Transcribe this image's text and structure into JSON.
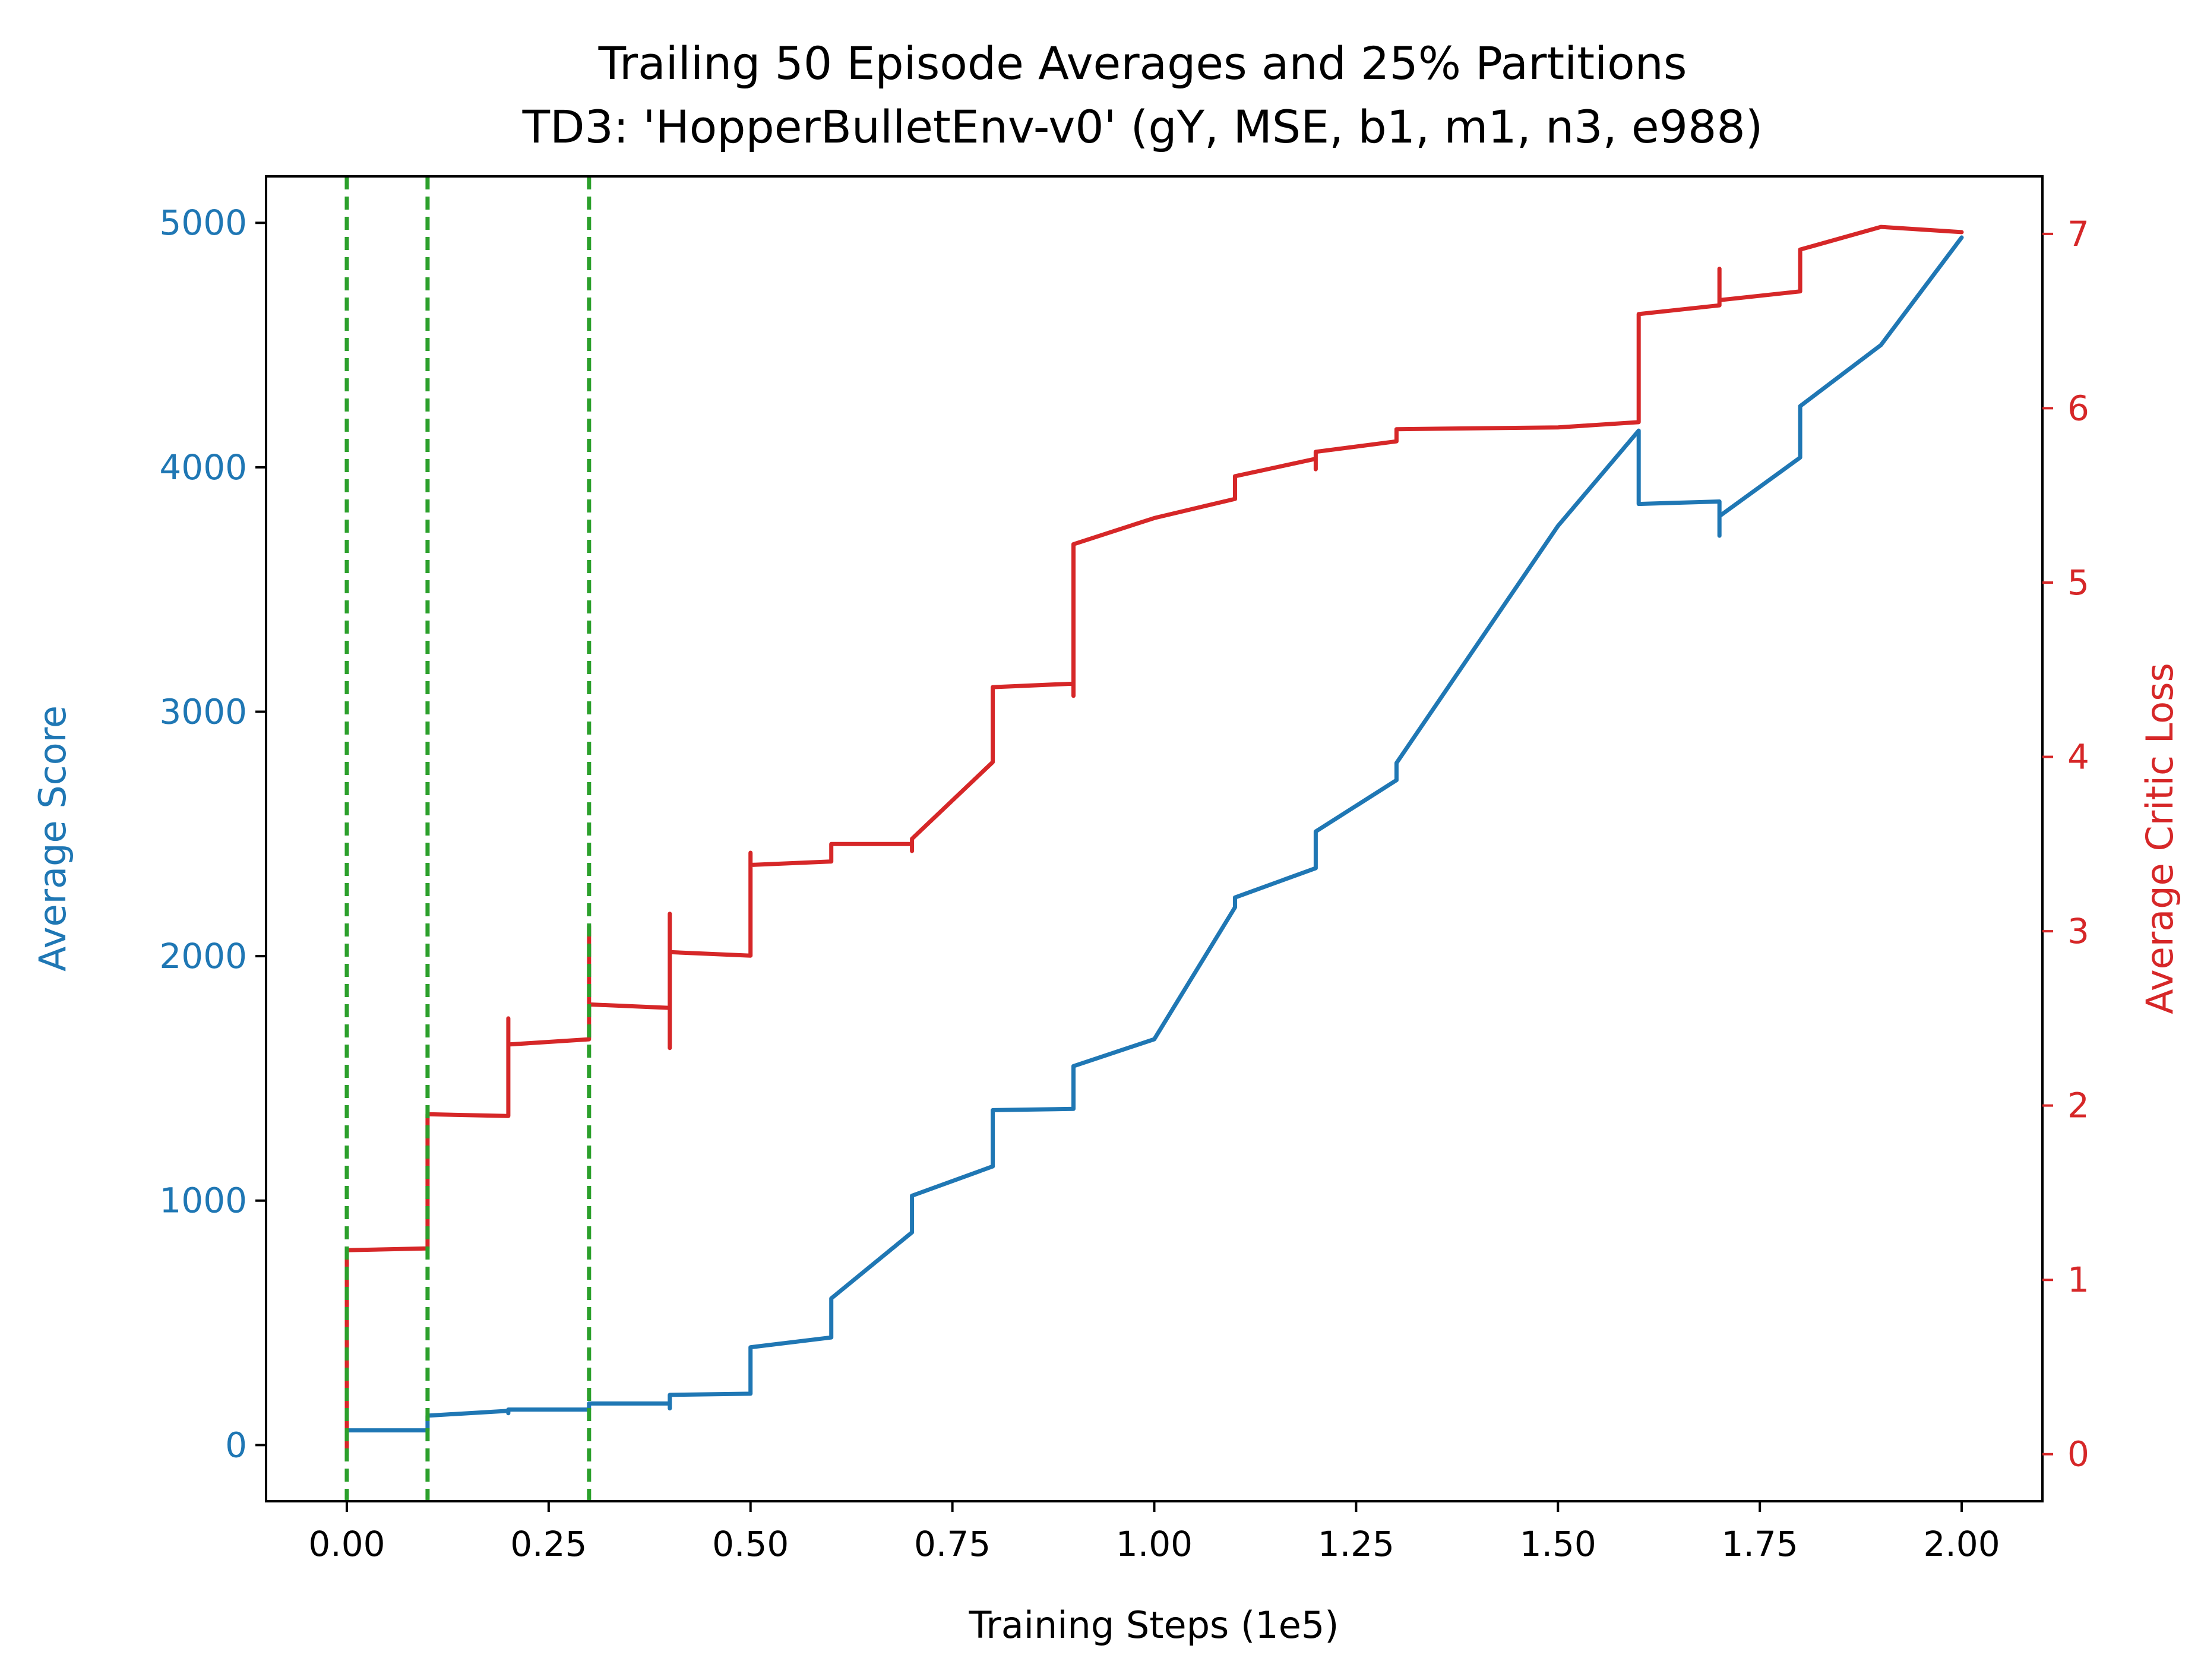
{
  "chart_data": {
    "type": "line",
    "title": "Trailing 50 Episode Averages and 25% Partitions",
    "subtitle": "TD3: 'HopperBulletEnv-v0' (gY, MSE, b1, m1, n3, e988)",
    "xlabel": "Training Steps (1e5)",
    "ylabel_left": "Average Score",
    "ylabel_right": "Average Critic Loss",
    "xlim": [
      -0.1,
      2.1
    ],
    "ylim_left": [
      -230,
      5190
    ],
    "ylim_right": [
      -0.27,
      7.33
    ],
    "x_ticks": [
      0.0,
      0.25,
      0.5,
      0.75,
      1.0,
      1.25,
      1.5,
      1.75,
      2.0
    ],
    "x_tick_labels": [
      "0.00",
      "0.25",
      "0.50",
      "0.75",
      "1.00",
      "1.25",
      "1.50",
      "1.75",
      "2.00"
    ],
    "y_left_ticks": [
      0,
      1000,
      2000,
      3000,
      4000,
      5000
    ],
    "y_left_tick_labels": [
      "0",
      "1000",
      "2000",
      "3000",
      "4000",
      "5000"
    ],
    "y_right_ticks": [
      0,
      1,
      2,
      3,
      4,
      5,
      6,
      7
    ],
    "y_right_tick_labels": [
      "0",
      "1",
      "2",
      "3",
      "4",
      "5",
      "6",
      "7"
    ],
    "grid": false,
    "colors": {
      "score": "#1f77b4",
      "loss": "#d62728",
      "partition": "#2ca02c",
      "axes": "#000000"
    },
    "partitions": [
      0.0,
      0.1,
      0.3
    ],
    "series": [
      {
        "axis": "left",
        "color": "#1f77b4",
        "x": [
          0.0,
          0.0,
          0.1,
          0.1,
          0.2,
          0.2,
          0.2,
          0.3,
          0.3,
          0.4,
          0.4,
          0.4,
          0.5,
          0.5,
          0.6,
          0.6,
          0.7,
          0.7,
          0.8,
          0.8,
          0.9,
          0.9,
          1.0,
          1.1,
          1.1,
          1.2,
          1.2,
          1.3,
          1.3,
          1.5,
          1.6,
          1.6,
          1.7,
          1.7,
          1.7,
          1.8,
          1.8,
          1.9,
          2.0
        ],
        "y": [
          60,
          60,
          60,
          120,
          140,
          130,
          145,
          145,
          170,
          170,
          150,
          205,
          210,
          400,
          440,
          600,
          870,
          1020,
          1140,
          1370,
          1375,
          1550,
          1660,
          2200,
          2240,
          2360,
          2510,
          2720,
          2790,
          3760,
          4150,
          3850,
          3860,
          3720,
          3800,
          4040,
          4250,
          4500,
          4940
        ]
      },
      {
        "axis": "right",
        "color": "#d62728",
        "x": [
          0.0,
          0.0,
          0.1,
          0.1,
          0.2,
          0.2,
          0.2,
          0.3,
          0.3,
          0.3,
          0.3,
          0.4,
          0.4,
          0.4,
          0.4,
          0.5,
          0.5,
          0.5,
          0.6,
          0.6,
          0.7,
          0.7,
          0.7,
          0.8,
          0.8,
          0.9,
          0.9,
          0.9,
          1.0,
          1.1,
          1.1,
          1.2,
          1.2,
          1.2,
          1.3,
          1.3,
          1.5,
          1.6,
          1.6,
          1.7,
          1.7,
          1.7,
          1.8,
          1.8,
          1.9,
          2.0
        ],
        "y": [
          0.0,
          1.17,
          1.18,
          1.95,
          1.94,
          2.5,
          2.35,
          2.38,
          3.03,
          2.4,
          2.58,
          2.56,
          2.33,
          3.1,
          2.88,
          2.86,
          3.45,
          3.38,
          3.4,
          3.5,
          3.5,
          3.46,
          3.53,
          3.97,
          4.4,
          4.42,
          4.35,
          5.22,
          5.37,
          5.48,
          5.61,
          5.71,
          5.65,
          5.75,
          5.81,
          5.88,
          5.89,
          5.92,
          6.54,
          6.59,
          6.8,
          6.62,
          6.67,
          6.91,
          7.04,
          7.01
        ]
      }
    ]
  }
}
